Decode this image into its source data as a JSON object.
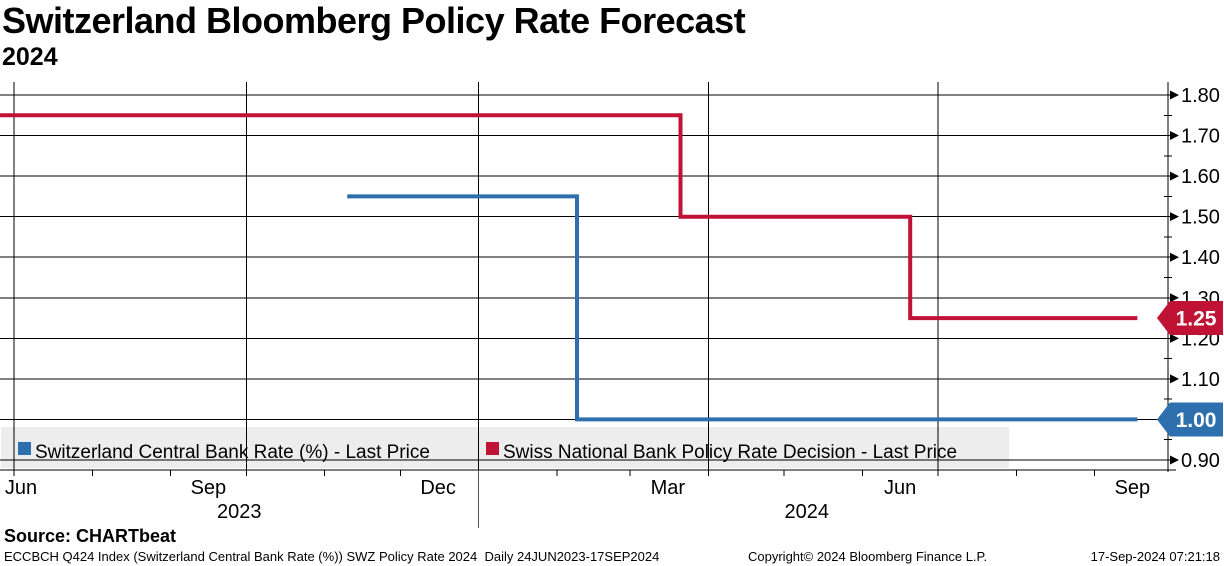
{
  "header": {
    "title": "Switzerland Bloomberg Policy Rate Forecast",
    "subtitle": "2024"
  },
  "footer": {
    "source": "Source: CHARTbeat",
    "description": "ECCBCH Q424 Index (Switzerland Central Bank Rate (%)) SWZ Policy Rate 2024  Daily 24JUN2023-17SEP2024",
    "copyright": "Copyright© 2024 Bloomberg Finance L.P.",
    "timestamp": "17-Sep-2024 07:21:18"
  },
  "colors": {
    "blue": "#2e6fae",
    "red": "#c01235",
    "grid": "#000000",
    "legend_bg": "#ededed",
    "badge_text": "#ffffff"
  },
  "chart_data": {
    "type": "line",
    "step": true,
    "x_axis": {
      "range_start": "2023-06-24",
      "range_end": "2024-09-17",
      "month_ticks": [
        "2023-07-01",
        "2023-08-01",
        "2023-09-01",
        "2023-10-01",
        "2023-11-01",
        "2023-12-01",
        "2024-01-01",
        "2024-02-01",
        "2024-03-01",
        "2024-04-01",
        "2024-05-01",
        "2024-06-01",
        "2024-07-01",
        "2024-08-01",
        "2024-09-01"
      ],
      "quarter_gridlines": [
        "2023-07-01",
        "2023-10-01",
        "2024-01-01",
        "2024-04-01",
        "2024-07-01"
      ],
      "month_labels": [
        {
          "text": "Jun",
          "date": "2023-06-15"
        },
        {
          "text": "Sep",
          "date": "2023-09-16"
        },
        {
          "text": "Dec",
          "date": "2023-12-16"
        },
        {
          "text": "Mar",
          "date": "2024-03-16"
        },
        {
          "text": "Jun",
          "date": "2024-06-16"
        },
        {
          "text": "Sep",
          "date": "2024-09-16"
        }
      ],
      "year_separator": "2024-01-01",
      "year_labels": [
        {
          "text": "2023",
          "span": [
            "2023-06-24",
            "2024-01-01"
          ]
        },
        {
          "text": "2024",
          "span": [
            "2024-01-01",
            "2024-09-17"
          ]
        }
      ]
    },
    "y_axis": {
      "side": "right",
      "min": 0.9,
      "max": 1.8,
      "major_step": 0.1,
      "minor_step": 0.05,
      "tick_labels": [
        "1.80",
        "1.70",
        "1.60",
        "1.50",
        "1.40",
        "1.30",
        "1.20",
        "1.10",
        "1.00",
        "0.90"
      ]
    },
    "series": [
      {
        "name": "Switzerland Central Bank Rate (%) - Last Price",
        "color": "#2e6fae",
        "last_price": "1.00",
        "points": [
          [
            "2023-11-10",
            1.55
          ],
          [
            "2024-02-09",
            1.55
          ],
          [
            "2024-02-09",
            1.0
          ],
          [
            "2024-09-18",
            1.0
          ]
        ]
      },
      {
        "name": "Swiss National Bank Policy Rate Decision - Last Price",
        "color": "#c01235",
        "last_price": "1.25",
        "points": [
          [
            "2023-06-24",
            1.75
          ],
          [
            "2024-03-21",
            1.75
          ],
          [
            "2024-03-21",
            1.5
          ],
          [
            "2024-06-20",
            1.5
          ],
          [
            "2024-06-20",
            1.25
          ],
          [
            "2024-09-18",
            1.25
          ]
        ]
      }
    ]
  }
}
